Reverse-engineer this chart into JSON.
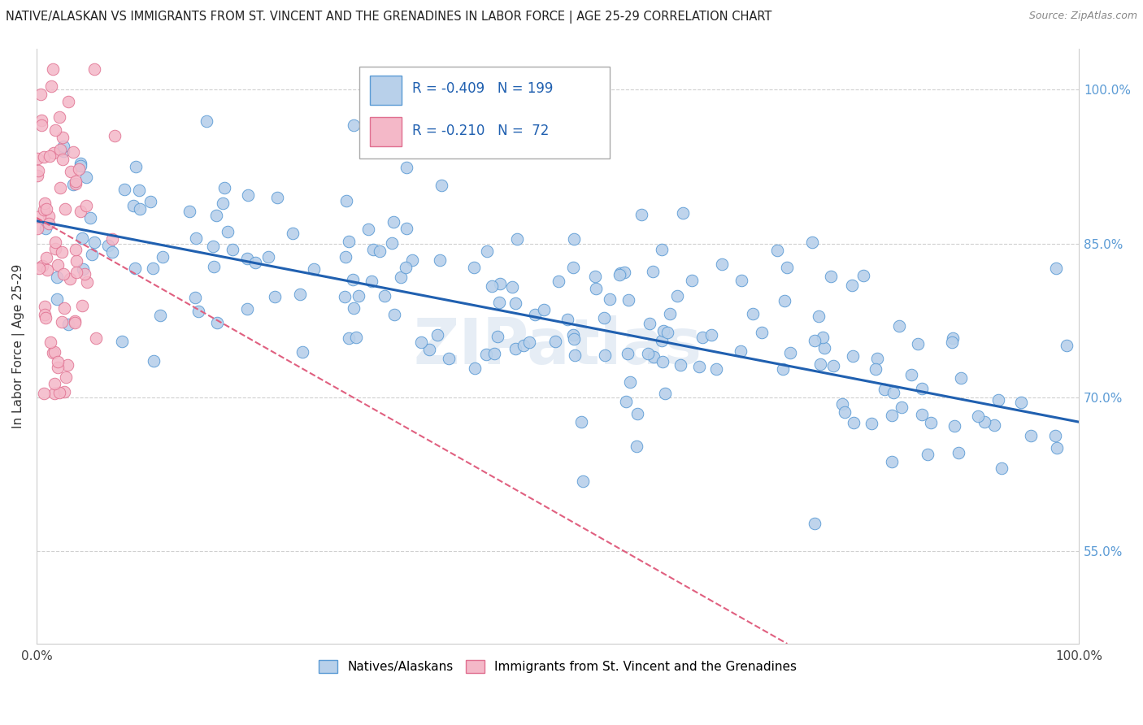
{
  "title": "NATIVE/ALASKAN VS IMMIGRANTS FROM ST. VINCENT AND THE GRENADINES IN LABOR FORCE | AGE 25-29 CORRELATION CHART",
  "source": "Source: ZipAtlas.com",
  "ylabel": "In Labor Force | Age 25-29",
  "x_min": 0.0,
  "x_max": 1.0,
  "y_min": 0.46,
  "y_max": 1.04,
  "y_ticks": [
    0.55,
    0.7,
    0.85,
    1.0
  ],
  "y_tick_labels": [
    "55.0%",
    "70.0%",
    "85.0%",
    "100.0%"
  ],
  "blue_color": "#b8d0ea",
  "blue_edge": "#5b9bd5",
  "pink_color": "#f4b8c8",
  "pink_edge": "#e07090",
  "trend_blue": "#2060b0",
  "trend_pink": "#e06080",
  "legend_R_blue": "-0.409",
  "legend_N_blue": "199",
  "legend_R_pink": "-0.210",
  "legend_N_pink": "72",
  "watermark": "ZIPatlas",
  "blue_trend_x0": 0.0,
  "blue_trend_x1": 1.0,
  "blue_trend_y0": 0.872,
  "blue_trend_y1": 0.676,
  "pink_trend_x0": 0.0,
  "pink_trend_x1": 0.72,
  "pink_trend_y0": 0.875,
  "pink_trend_y1": 0.46
}
